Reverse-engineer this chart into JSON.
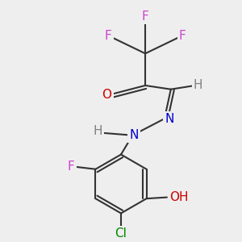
{
  "background_color": "#eeeeee",
  "bond_color": "#333333",
  "bond_lw": 1.5,
  "atom_bg": "#eeeeee",
  "colors": {
    "F": "#cc44cc",
    "O": "#cc0000",
    "N": "#0000cc",
    "H": "#808080",
    "Cl": "#008800",
    "OH": "#cc0000",
    "C": "#333333"
  },
  "fontsize": 11
}
